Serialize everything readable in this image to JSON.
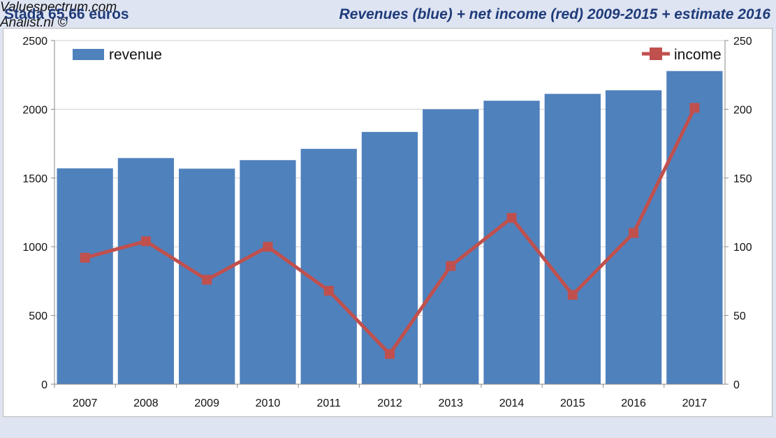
{
  "header": {
    "left_title": "Stada 65,66 euros",
    "right_title": "Revenues (blue) + net income (red) 2009-2015 + estimate 2016"
  },
  "footer": {
    "left": "Valuespectrum.com",
    "right": "Analist.nl ©"
  },
  "chart_data": {
    "type": "bar",
    "title": "Revenues (blue) + net income (red) 2009-2015 + estimate 2016",
    "categories": [
      "2007",
      "2008",
      "2009",
      "2010",
      "2011",
      "2012",
      "2013",
      "2014",
      "2015",
      "2016",
      "2017"
    ],
    "series": [
      {
        "name": "revenue",
        "type": "bar",
        "axis": "left",
        "color": "#4f81bd",
        "values": [
          1570,
          1645,
          1568,
          1630,
          1712,
          1835,
          2000,
          2062,
          2112,
          2138,
          2278
        ]
      },
      {
        "name": "income",
        "type": "line",
        "axis": "right",
        "color": "#c0504d",
        "values": [
          92,
          104,
          76,
          100,
          68,
          22,
          86,
          121,
          65,
          110,
          201
        ]
      }
    ],
    "ylim": [
      0,
      2500
    ],
    "yticks": [
      0,
      500,
      1000,
      1500,
      2000,
      2500
    ],
    "y2lim": [
      0,
      250
    ],
    "y2ticks": [
      0,
      50,
      100,
      150,
      200,
      250
    ],
    "legend": [
      {
        "label": "revenue",
        "position": "top-left"
      },
      {
        "label": "income",
        "position": "top-right"
      }
    ],
    "grid": true
  }
}
